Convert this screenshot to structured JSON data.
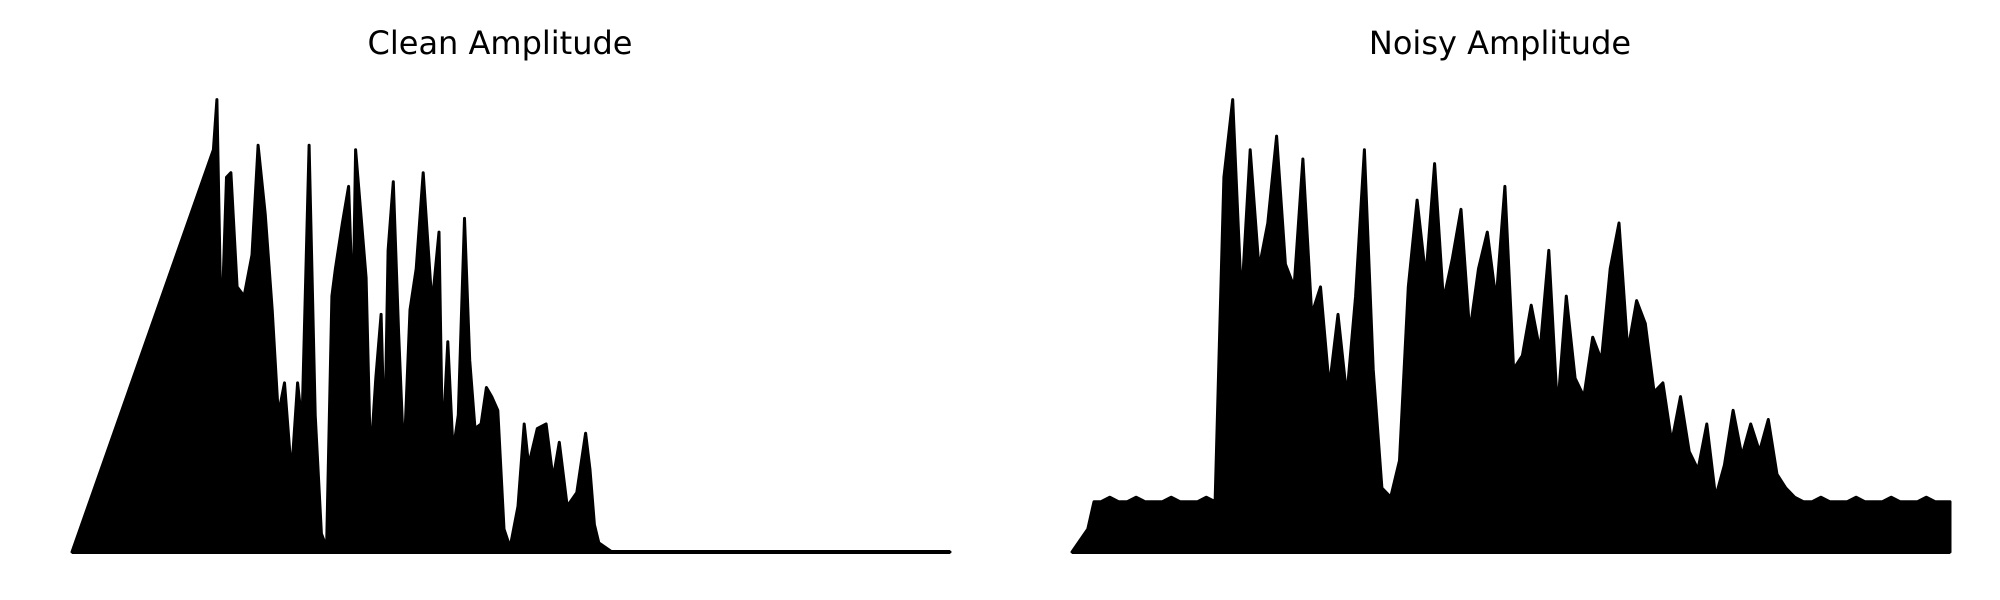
{
  "colors": {
    "background": "#ffffff",
    "signal": "#000000"
  },
  "chart_data": [
    {
      "type": "area",
      "title": "Clean Amplitude",
      "xlabel": "",
      "ylabel": "",
      "axes": "off",
      "grid": false,
      "xlim": [
        0,
        1
      ],
      "ylim": [
        0,
        1
      ],
      "x": [
        0.0,
        0.161,
        0.165,
        0.17,
        0.176,
        0.181,
        0.188,
        0.196,
        0.205,
        0.212,
        0.22,
        0.228,
        0.235,
        0.242,
        0.25,
        0.257,
        0.262,
        0.27,
        0.277,
        0.284,
        0.29,
        0.296,
        0.3,
        0.308,
        0.315,
        0.32,
        0.323,
        0.335,
        0.34,
        0.346,
        0.352,
        0.356,
        0.36,
        0.366,
        0.372,
        0.378,
        0.385,
        0.392,
        0.4,
        0.41,
        0.418,
        0.422,
        0.428,
        0.434,
        0.44,
        0.447,
        0.453,
        0.459,
        0.466,
        0.472,
        0.478,
        0.485,
        0.492,
        0.499,
        0.508,
        0.515,
        0.52,
        0.53,
        0.54,
        0.548,
        0.555,
        0.564,
        0.575,
        0.585,
        0.59,
        0.595,
        0.6,
        0.615,
        0.62,
        0.63,
        0.64,
        0.65,
        0.657,
        0.665,
        0.672,
        0.68,
        0.69,
        1.0
      ],
      "values": [
        0.0,
        0.88,
        0.99,
        0.47,
        0.82,
        0.83,
        0.58,
        0.56,
        0.65,
        0.89,
        0.74,
        0.53,
        0.3,
        0.37,
        0.17,
        0.37,
        0.28,
        0.89,
        0.3,
        0.04,
        0.01,
        0.56,
        0.62,
        0.72,
        0.8,
        0.52,
        0.88,
        0.6,
        0.2,
        0.38,
        0.52,
        0.23,
        0.66,
        0.81,
        0.48,
        0.2,
        0.53,
        0.62,
        0.83,
        0.54,
        0.7,
        0.23,
        0.46,
        0.22,
        0.3,
        0.73,
        0.42,
        0.27,
        0.28,
        0.36,
        0.34,
        0.31,
        0.05,
        0.01,
        0.1,
        0.28,
        0.19,
        0.27,
        0.28,
        0.16,
        0.24,
        0.1,
        0.13,
        0.26,
        0.18,
        0.06,
        0.02,
        0.0,
        0.0,
        0.0,
        0.0,
        0.0,
        0.0,
        0.0,
        0.0,
        0.0,
        0.0,
        0.0
      ]
    },
    {
      "type": "area",
      "title": "Noisy Amplitude",
      "xlabel": "",
      "ylabel": "",
      "axes": "off",
      "grid": false,
      "xlim": [
        0,
        1
      ],
      "ylim": [
        0,
        1
      ],
      "noise_floor": 0.11,
      "x": [
        0.0,
        0.018,
        0.025,
        0.033,
        0.043,
        0.053,
        0.063,
        0.073,
        0.083,
        0.093,
        0.103,
        0.113,
        0.123,
        0.133,
        0.143,
        0.153,
        0.163,
        0.173,
        0.183,
        0.193,
        0.203,
        0.213,
        0.223,
        0.233,
        0.243,
        0.253,
        0.263,
        0.273,
        0.283,
        0.293,
        0.303,
        0.313,
        0.323,
        0.333,
        0.343,
        0.353,
        0.363,
        0.373,
        0.383,
        0.393,
        0.403,
        0.413,
        0.423,
        0.433,
        0.443,
        0.453,
        0.463,
        0.473,
        0.483,
        0.493,
        0.503,
        0.513,
        0.523,
        0.533,
        0.543,
        0.553,
        0.563,
        0.573,
        0.583,
        0.593,
        0.603,
        0.613,
        0.623,
        0.633,
        0.643,
        0.653,
        0.663,
        0.673,
        0.683,
        0.693,
        0.703,
        0.713,
        0.723,
        0.733,
        0.743,
        0.753,
        0.763,
        0.773,
        0.783,
        0.793,
        0.803,
        0.813,
        0.823,
        0.833,
        0.843,
        0.853,
        0.863,
        0.873,
        0.883,
        0.893,
        0.903,
        0.913,
        0.923,
        0.933,
        0.943,
        0.953,
        0.963,
        0.973,
        0.983,
        1.0
      ],
      "values": [
        0.0,
        0.05,
        0.11,
        0.11,
        0.12,
        0.11,
        0.11,
        0.12,
        0.11,
        0.11,
        0.11,
        0.12,
        0.11,
        0.11,
        0.11,
        0.12,
        0.11,
        0.82,
        0.99,
        0.55,
        0.88,
        0.62,
        0.72,
        0.91,
        0.63,
        0.58,
        0.86,
        0.52,
        0.58,
        0.36,
        0.52,
        0.34,
        0.56,
        0.88,
        0.4,
        0.14,
        0.12,
        0.2,
        0.58,
        0.77,
        0.6,
        0.85,
        0.55,
        0.64,
        0.75,
        0.48,
        0.62,
        0.7,
        0.55,
        0.8,
        0.4,
        0.43,
        0.54,
        0.44,
        0.66,
        0.31,
        0.56,
        0.38,
        0.34,
        0.47,
        0.42,
        0.62,
        0.72,
        0.44,
        0.55,
        0.5,
        0.35,
        0.37,
        0.24,
        0.34,
        0.22,
        0.18,
        0.28,
        0.12,
        0.19,
        0.31,
        0.21,
        0.28,
        0.22,
        0.29,
        0.17,
        0.14,
        0.12,
        0.11,
        0.11,
        0.12,
        0.11,
        0.11,
        0.11,
        0.12,
        0.11,
        0.11,
        0.11,
        0.12,
        0.11,
        0.11,
        0.11,
        0.12,
        0.11,
        0.11
      ]
    }
  ]
}
